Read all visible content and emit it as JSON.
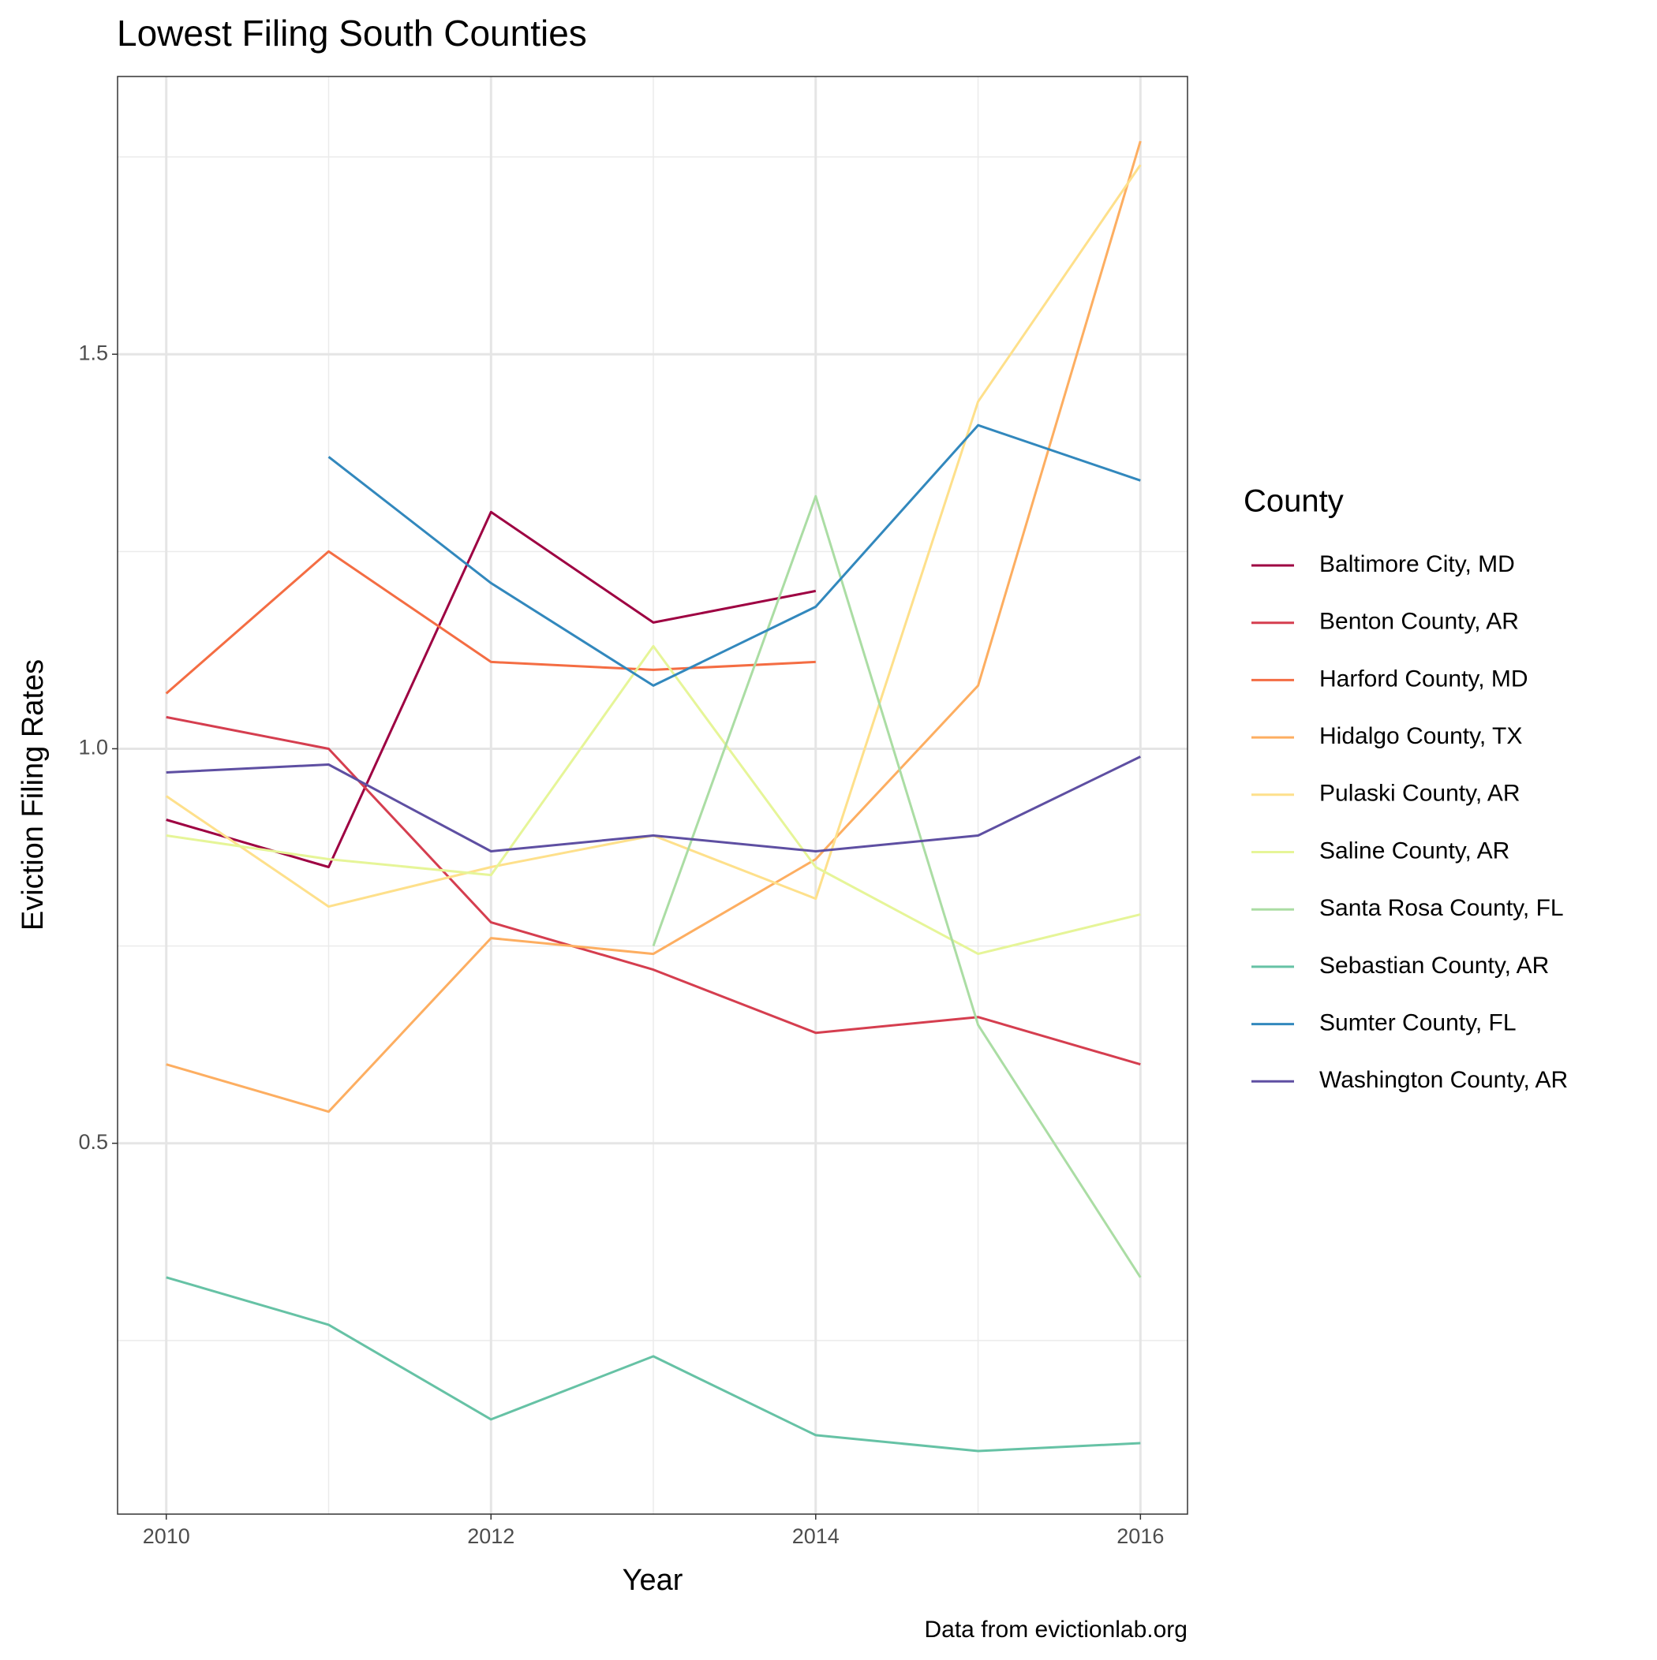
{
  "chart_data": {
    "type": "line",
    "title": "Lowest Filing South Counties",
    "x_label": "Year",
    "y_label": "Eviction Filing Rates",
    "caption": "Data from evictionlab.org",
    "legend_title": "County",
    "legend_position": "right",
    "grid": true,
    "x": [
      2010,
      2011,
      2012,
      2013,
      2014,
      2015,
      2016
    ],
    "xlim": [
      2009.7,
      2016.29
    ],
    "xticks": [
      2010,
      2012,
      2014,
      2016
    ],
    "x_minor_grid": [
      2011,
      2013,
      2015
    ],
    "ylim": [
      0.03,
      1.852
    ],
    "yticks": [
      {
        "value": 0.5,
        "label": "0.5"
      },
      {
        "value": 1.0,
        "label": "1.0"
      },
      {
        "value": 1.5,
        "label": "1.5"
      }
    ],
    "y_minor_grid": [
      0.25,
      0.75,
      1.25,
      1.75
    ],
    "series": [
      {
        "name": "Baltimore City, MD",
        "color": "#9E0142",
        "values": [
          0.91,
          0.85,
          1.3,
          1.16,
          1.2,
          null,
          null
        ]
      },
      {
        "name": "Benton County, AR",
        "color": "#D53E4F",
        "values": [
          1.04,
          1.0,
          0.78,
          0.72,
          0.64,
          0.66,
          0.6
        ]
      },
      {
        "name": "Harford County, MD",
        "color": "#F46D43",
        "values": [
          1.07,
          1.25,
          1.11,
          1.1,
          1.11,
          null,
          null
        ]
      },
      {
        "name": "Hidalgo County, TX",
        "color": "#FDAE61",
        "values": [
          0.6,
          0.54,
          0.76,
          0.74,
          0.86,
          1.08,
          1.77
        ]
      },
      {
        "name": "Pulaski County, AR",
        "color": "#FEE08B",
        "values": [
          0.94,
          0.8,
          0.85,
          0.89,
          0.81,
          1.44,
          1.74
        ]
      },
      {
        "name": "Saline County, AR",
        "color": "#E6F598",
        "values": [
          0.89,
          0.86,
          0.84,
          1.13,
          0.85,
          0.74,
          0.79
        ]
      },
      {
        "name": "Santa Rosa County, FL",
        "color": "#ABDDA4",
        "values": [
          null,
          null,
          null,
          0.75,
          1.32,
          0.65,
          0.33
        ]
      },
      {
        "name": "Sebastian County, AR",
        "color": "#66C2A5",
        "values": [
          0.33,
          0.27,
          0.15,
          0.23,
          0.13,
          0.11,
          0.12
        ]
      },
      {
        "name": "Sumter County, FL",
        "color": "#3288BD",
        "values": [
          null,
          1.37,
          1.21,
          1.08,
          1.18,
          1.41,
          1.34
        ]
      },
      {
        "name": "Washington County, AR",
        "color": "#5E4FA2",
        "values": [
          0.97,
          0.98,
          0.87,
          0.89,
          0.87,
          0.89,
          0.99
        ]
      }
    ]
  }
}
